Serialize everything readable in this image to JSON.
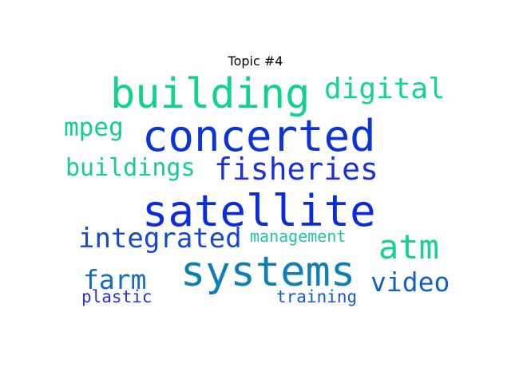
{
  "title": "Topic #4",
  "words": [
    {
      "text": "satellite",
      "color": "#0a2be0"
    },
    {
      "text": "concerted",
      "color": "#0a33d8"
    },
    {
      "text": "building",
      "color": "#10d48c"
    },
    {
      "text": "systems",
      "color": "#0f7fb6"
    },
    {
      "text": "fisheries",
      "color": "#1a30d4"
    },
    {
      "text": "atm",
      "color": "#12d490"
    },
    {
      "text": "digital",
      "color": "#12d494"
    },
    {
      "text": "integrated",
      "color": "#1648d0"
    },
    {
      "text": "video",
      "color": "#1160c4"
    },
    {
      "text": "buildings",
      "color": "#16cc9a"
    },
    {
      "text": "mpeg",
      "color": "#12cc96"
    },
    {
      "text": "farm",
      "color": "#126cc0"
    },
    {
      "text": "management",
      "color": "#22c4a6"
    },
    {
      "text": "plastic",
      "color": "#2830d8"
    },
    {
      "text": "training",
      "color": "#1a5cc6"
    }
  ]
}
